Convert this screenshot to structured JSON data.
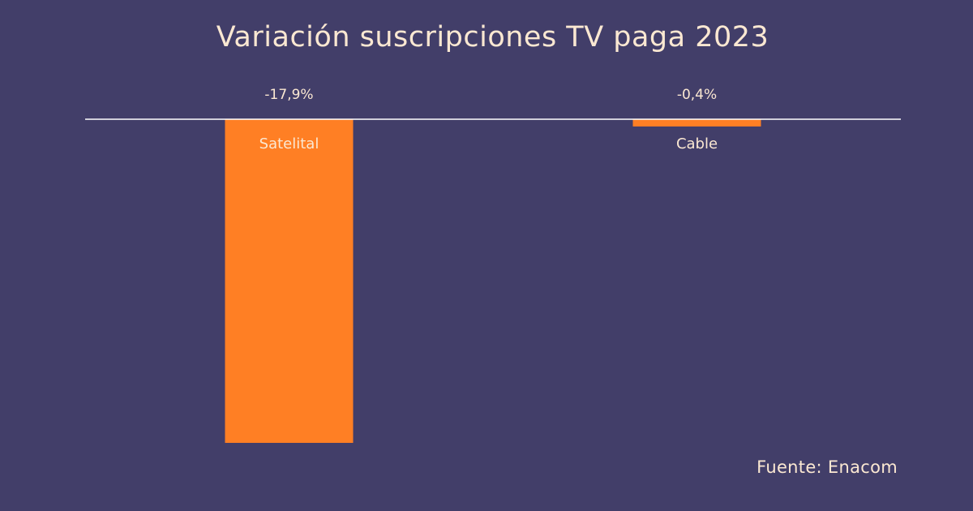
{
  "chart_data": {
    "type": "bar",
    "title": "Variación suscripciones TV paga 2023",
    "categories": [
      "Satelital",
      "Cable"
    ],
    "values": [
      -17.9,
      -0.4
    ],
    "value_labels": [
      "-17,9%",
      "-0,4%"
    ],
    "ylim": [
      -17.9,
      0
    ],
    "grid": false,
    "legend": "none",
    "xlabel": "",
    "ylabel": "",
    "bar_color": "#ff7f24",
    "baseline_color": "#ffffff",
    "text_color": "#fbe8d2"
  },
  "source": "Fuente: Enacom",
  "colors": {
    "background": "#423e69"
  }
}
